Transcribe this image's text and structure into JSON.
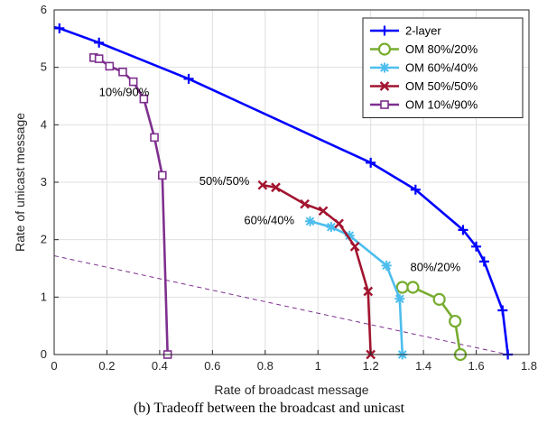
{
  "chart_data": {
    "type": "line",
    "title": "",
    "xlabel": "Rate of broadcast message",
    "ylabel": "Rate of unicast message",
    "xlim": [
      0,
      1.8
    ],
    "ylim": [
      0,
      6
    ],
    "xticks": [
      "0",
      "0.2",
      "0.4",
      "0.6",
      "0.8",
      "1",
      "1.2",
      "1.4",
      "1.6",
      "1.8"
    ],
    "yticks": [
      "0",
      "1",
      "2",
      "3",
      "4",
      "5",
      "6"
    ],
    "grid": true,
    "legend_position": "top-right",
    "series": [
      {
        "name": "2-layer",
        "color": "#0000ff",
        "marker": "plus",
        "x": [
          0.0,
          0.02,
          0.17,
          0.51,
          1.2,
          1.37,
          1.55,
          1.6,
          1.63,
          1.7,
          1.72
        ],
        "y": [
          5.7,
          5.68,
          5.43,
          4.8,
          3.34,
          2.87,
          2.17,
          1.88,
          1.62,
          0.77,
          0.0
        ]
      },
      {
        "name": "OM 80%/20%",
        "color": "#77ac30",
        "marker": "circle",
        "x": [
          1.32,
          1.36,
          1.46,
          1.52,
          1.54
        ],
        "y": [
          1.17,
          1.17,
          0.96,
          0.58,
          0.0
        ]
      },
      {
        "name": "OM 60%/40%",
        "color": "#4dbeee",
        "marker": "asterisk",
        "x": [
          0.97,
          1.05,
          1.12,
          1.26,
          1.31,
          1.32
        ],
        "y": [
          2.32,
          2.22,
          2.07,
          1.55,
          0.97,
          0.0
        ]
      },
      {
        "name": "OM 50%/50%",
        "color": "#a2142f",
        "marker": "x",
        "x": [
          0.79,
          0.84,
          0.95,
          1.02,
          1.08,
          1.14,
          1.19,
          1.2
        ],
        "y": [
          2.95,
          2.91,
          2.62,
          2.5,
          2.28,
          1.88,
          1.1,
          0.0
        ]
      },
      {
        "name": "OM 10%/90%",
        "color": "#7e2f8e",
        "marker": "square",
        "x": [
          0.15,
          0.17,
          0.21,
          0.26,
          0.3,
          0.34,
          0.38,
          0.41,
          0.43
        ],
        "y": [
          5.17,
          5.15,
          5.02,
          4.92,
          4.75,
          4.45,
          3.78,
          3.12,
          0.0
        ]
      }
    ],
    "reference_line": {
      "color": "#7e2f8e",
      "style": "dashed",
      "x": [
        0,
        1.72
      ],
      "y": [
        1.72,
        0
      ]
    },
    "annotations": [
      {
        "text": "10%/90%",
        "x": 0.17,
        "y": 4.5
      },
      {
        "text": "50%/50%",
        "x": 0.55,
        "y": 2.95
      },
      {
        "text": "60%/40%",
        "x": 0.72,
        "y": 2.27
      },
      {
        "text": "80%/20%",
        "x": 1.35,
        "y": 1.45
      }
    ]
  },
  "caption": "(b) Tradeoff between the broadcast and unicast"
}
